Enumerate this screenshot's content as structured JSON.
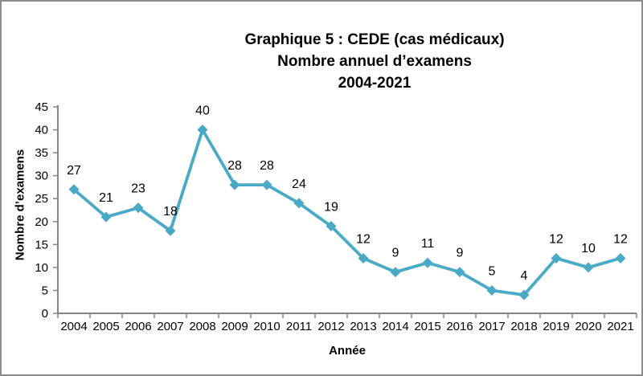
{
  "window": {
    "background": "#FFFFFF",
    "border_color": "#8C8C8C"
  },
  "chart_data": {
    "type": "line",
    "title_lines": [
      "Graphique 5 : CEDE (cas médicaux)",
      "Nombre annuel d’examens",
      "2004-2021"
    ],
    "categories": [
      "2004",
      "2005",
      "2006",
      "2007",
      "2008",
      "2009",
      "2010",
      "2011",
      "2012",
      "2013",
      "2014",
      "2015",
      "2016",
      "2017",
      "2018",
      "2019",
      "2020",
      "2021"
    ],
    "values": [
      27,
      21,
      23,
      18,
      40,
      28,
      28,
      24,
      19,
      12,
      9,
      11,
      9,
      5,
      4,
      12,
      10,
      12
    ],
    "xlabel": "Année",
    "ylabel": "Nombre d’examens",
    "ylim": [
      0,
      45
    ],
    "yticks": [
      0,
      5,
      10,
      15,
      20,
      25,
      30,
      35,
      40,
      45
    ],
    "grid": false,
    "legend_position": "none",
    "marker": "diamond",
    "show_data_labels": true,
    "colors": {
      "series": "#4AA9C5",
      "axis": "#848484",
      "text": "#000000"
    }
  }
}
